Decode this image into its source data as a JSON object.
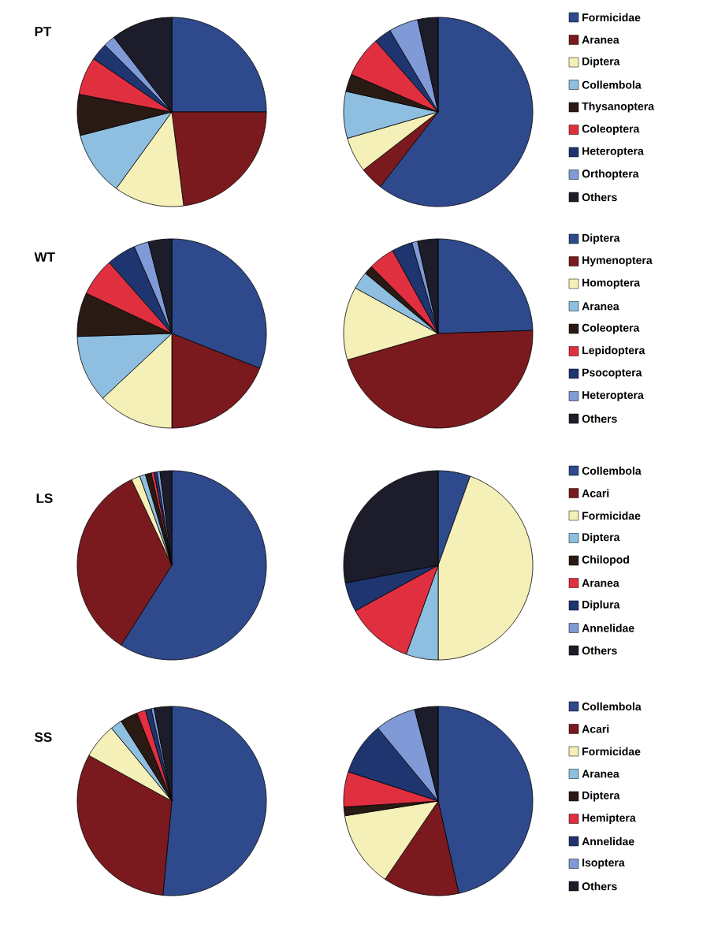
{
  "chart_data": [
    {
      "type": "pie",
      "title": "PT",
      "categories": [
        "Formicidae",
        "Aranea",
        "Diptera",
        "Collembola",
        "Thysanoptera",
        "Coleoptera",
        "Heteroptera",
        "Orthoptera",
        "Others"
      ],
      "colors": [
        "#2e4a8c",
        "#7a1a1f",
        "#f5f0b8",
        "#8ebfe0",
        "#2a1a14",
        "#e0303f",
        "#1f3570",
        "#7f9ad6",
        "#1c1c2a"
      ],
      "legend": "right",
      "series": [
        {
          "values": [
            25,
            23,
            12,
            11,
            7,
            6.5,
            3,
            2,
            10.5
          ]
        },
        {
          "values": [
            60.5,
            4,
            6,
            8,
            3,
            7,
            3,
            5,
            3.5
          ]
        }
      ]
    },
    {
      "type": "pie",
      "title": "WT",
      "categories": [
        "Diptera",
        "Hymenoptera",
        "Homoptera",
        "Aranea",
        "Coleoptera",
        "Lepidoptera",
        "Psocoptera",
        "Heteroptera",
        "Others"
      ],
      "colors": [
        "#2e4a8c",
        "#7a1a1f",
        "#f5f0b8",
        "#8ebfe0",
        "#2a1a14",
        "#e0303f",
        "#1f3570",
        "#7f9ad6",
        "#1c1c2a"
      ],
      "legend": "right",
      "series": [
        {
          "values": [
            31,
            19,
            13,
            11.5,
            7.5,
            6.5,
            5,
            2.5,
            4
          ]
        },
        {
          "values": [
            24.5,
            46,
            12.5,
            3,
            1.5,
            4.5,
            3.5,
            1,
            3.5
          ]
        }
      ]
    },
    {
      "type": "pie",
      "title": "LS",
      "categories": [
        "Collembola",
        "Acari",
        "Formicidae",
        "Diptera",
        "Chilopod",
        "Aranea",
        "Diplura",
        "Annelidae",
        "Others"
      ],
      "colors": [
        "#2e4a8c",
        "#7a1a1f",
        "#f5f0b8",
        "#8ebfe0",
        "#2a1a14",
        "#e0303f",
        "#1f3570",
        "#7f9ad6",
        "#1c1c2a"
      ],
      "legend": "right",
      "series": [
        {
          "values": [
            59,
            34,
            1.5,
            1,
            1,
            0.5,
            0.5,
            0.5,
            2
          ]
        },
        {
          "values": [
            5.5,
            0,
            44.5,
            5.5,
            0,
            11.5,
            5,
            0,
            28
          ]
        }
      ]
    },
    {
      "type": "pie",
      "title": "SS",
      "categories": [
        "Collembola",
        "Acari",
        "Formicidae",
        "Aranea",
        "Diptera",
        "Hemiptera",
        "Annelidae",
        "Isoptera",
        "Others"
      ],
      "colors": [
        "#2e4a8c",
        "#7a1a1f",
        "#f5f0b8",
        "#8ebfe0",
        "#2a1a14",
        "#e0303f",
        "#1f3570",
        "#7f9ad6",
        "#1c1c2a"
      ],
      "legend": "right",
      "series": [
        {
          "values": [
            51.5,
            31.5,
            6,
            2,
            3,
            1.5,
            1,
            0.5,
            3
          ]
        },
        {
          "values": [
            46.5,
            13,
            13,
            0,
            1.5,
            6,
            9,
            7,
            4
          ]
        }
      ]
    }
  ]
}
